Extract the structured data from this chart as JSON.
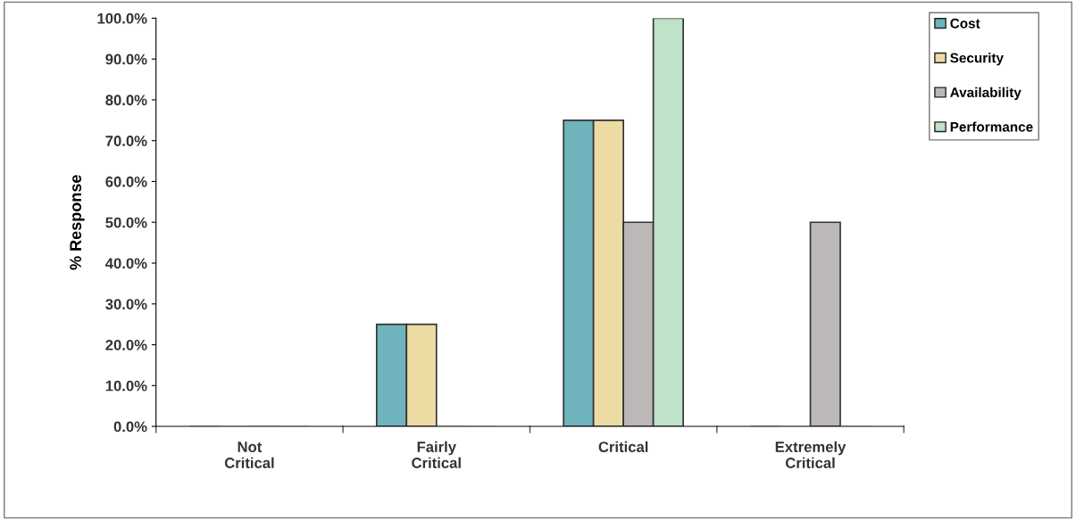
{
  "chart_data": {
    "type": "bar",
    "ylabel": "% Response",
    "categories": [
      "Not\nCritical",
      "Fairly\nCritical",
      "Critical",
      "Extremely\nCritical"
    ],
    "series": [
      {
        "name": "Cost",
        "color": "#6fb4bc",
        "values": [
          0,
          25,
          75,
          0
        ]
      },
      {
        "name": "Security",
        "color": "#ecdca4",
        "values": [
          0,
          25,
          75,
          0
        ]
      },
      {
        "name": "Availability",
        "color": "#bdb8b8",
        "values": [
          0,
          0,
          50,
          50
        ]
      },
      {
        "name": "Performance",
        "color": "#c0e2c8",
        "values": [
          0,
          0,
          100,
          0
        ]
      }
    ],
    "ylim": [
      0,
      100
    ],
    "yticks": [
      {
        "value": 0,
        "label": "0.0%"
      },
      {
        "value": 10,
        "label": "10.0%"
      },
      {
        "value": 20,
        "label": "20.0%"
      },
      {
        "value": 30,
        "label": "30.0%"
      },
      {
        "value": 40,
        "label": "40.0%"
      },
      {
        "value": 50,
        "label": "50.0%"
      },
      {
        "value": 60,
        "label": "60.0%"
      },
      {
        "value": 70,
        "label": "70.0%"
      },
      {
        "value": 80,
        "label": "80.0%"
      },
      {
        "value": 90,
        "label": "90.0%"
      },
      {
        "value": 100,
        "label": "100.0%"
      }
    ],
    "grid": false,
    "legend": "top right"
  }
}
